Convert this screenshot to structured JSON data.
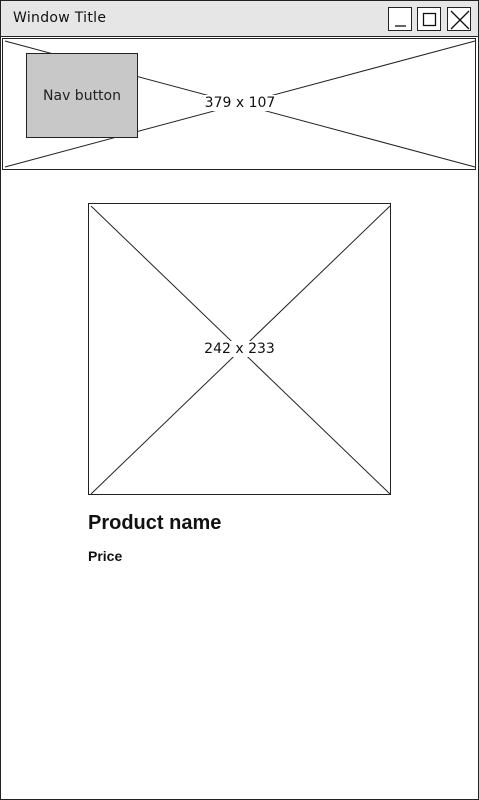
{
  "window": {
    "title": "Window Title",
    "controls": [
      "minimize-icon",
      "maximize-icon",
      "close-icon"
    ]
  },
  "banner": {
    "placeholder_label": "379 x 107",
    "nav_button_label": "Nav button"
  },
  "product": {
    "image_placeholder_label": "242 x 233",
    "name": "Product name",
    "price": "Price"
  }
}
